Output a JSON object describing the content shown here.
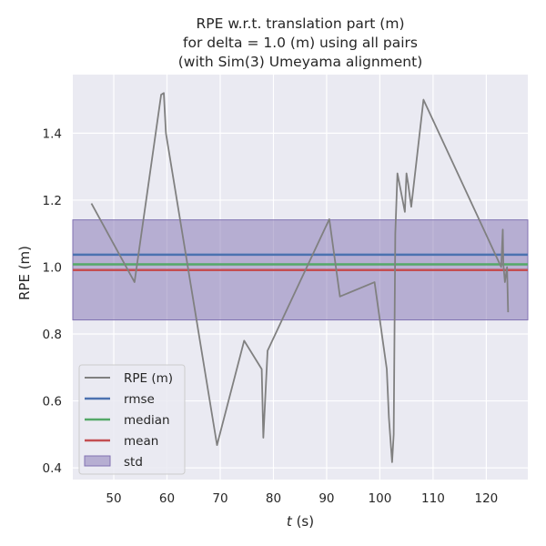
{
  "chart_data": {
    "type": "line",
    "title": [
      "RPE w.r.t. translation part (m)",
      "for delta = 1.0 (m) using all pairs",
      "(with Sim(3) Umeyama alignment)"
    ],
    "xlabel_italic": "t",
    "xlabel_suffix": " (s)",
    "ylabel": "RPE (m)",
    "xlim": [
      42.3,
      127.8
    ],
    "ylim": [
      0.365,
      1.575
    ],
    "xticks": [
      50,
      60,
      70,
      80,
      90,
      100,
      110,
      120
    ],
    "yticks": [
      0.4,
      0.6,
      0.8,
      1.0,
      1.2,
      1.4
    ],
    "grid": true,
    "legend_position": "lower-left",
    "series": [
      {
        "name": "RPE (m)",
        "color": "#808080",
        "x": [
          45.8,
          53.9,
          58.9,
          59.4,
          59.8,
          69.4,
          74.5,
          77.8,
          78.1,
          78.9,
          90.5,
          92.5,
          99.0,
          101.3,
          101.7,
          102.3,
          102.6,
          102.9,
          103.3,
          104.7,
          105.0,
          105.3,
          105.9,
          108.2,
          122.8,
          123.1,
          123.2,
          123.5,
          123.9,
          124.1
        ],
        "y": [
          1.19,
          0.955,
          1.515,
          1.52,
          1.4,
          0.468,
          0.78,
          0.695,
          0.49,
          0.75,
          1.143,
          0.912,
          0.955,
          0.695,
          0.55,
          0.417,
          0.5,
          1.1,
          1.28,
          1.165,
          1.28,
          1.25,
          1.18,
          1.5,
          1.0,
          1.112,
          1.01,
          0.955,
          1.0,
          0.865
        ]
      }
    ],
    "stats": {
      "rmse": {
        "name": "rmse",
        "value": 1.037,
        "color": "#4c72b0"
      },
      "median": {
        "name": "median",
        "value": 1.008,
        "color": "#55a868"
      },
      "mean": {
        "name": "mean",
        "value": 0.991,
        "color": "#c44e52"
      },
      "std": {
        "name": "std",
        "band": [
          0.842,
          1.141
        ],
        "color": "#8172b2"
      }
    }
  }
}
